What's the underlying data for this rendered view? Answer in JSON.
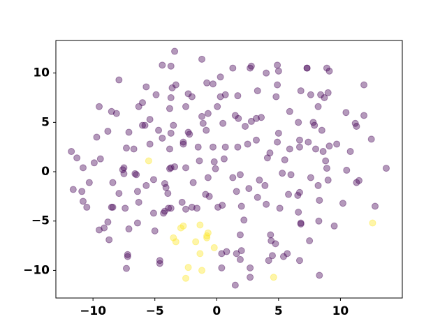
{
  "chart_data": {
    "type": "scatter",
    "xlim": [
      -13.0,
      15.0
    ],
    "ylim": [
      -12.8,
      13.3
    ],
    "xticks": [
      {
        "value": -10,
        "label": "−10"
      },
      {
        "value": -5,
        "label": "−5"
      },
      0,
      5,
      10
    ],
    "yticks": [
      {
        "value": -10,
        "label": "−10"
      },
      {
        "value": -5,
        "label": "−5"
      },
      0,
      5,
      10
    ],
    "series": [
      {
        "color": "#440154",
        "x": [
          -11.75,
          -11.3,
          -10.8,
          -11.6,
          -10.9,
          -10.3,
          -10.8,
          -10.5,
          -9.9,
          -9.4,
          -9.7,
          -9.5,
          -8.8,
          -8.5,
          -8.1,
          -7.9,
          -8.4,
          -8.5,
          -8.4,
          -9.5,
          -9.1,
          -8.8,
          -8.7,
          -7.6,
          -7.5,
          -7.3,
          -7.1,
          -7.5,
          -6.6,
          -6.5,
          -6.7,
          -7.9,
          -7.4,
          -7.1,
          -7.2,
          -7.2,
          -7.3,
          -6.4,
          -6.3,
          -6.4,
          -6.3,
          -6.0,
          -6.0,
          -5.8,
          -5.7,
          -5.4,
          -5.4,
          -5.7,
          -5.1,
          -5.1,
          -5.0,
          -4.9,
          -4.7,
          -4.6,
          -4.6,
          -4.4,
          -4.4,
          -4.3,
          -4.2,
          -4.2,
          -4.1,
          -3.95,
          -3.8,
          -3.7,
          -3.8,
          -3.7,
          -3.7,
          -3.6,
          -3.7,
          -3.8,
          -3.5,
          -3.3,
          -3.4,
          -3.4,
          -3.7,
          -3.9,
          -2.8,
          -2.7,
          -2.7,
          -2.5,
          -2.3,
          -2.0,
          -2.3,
          -2.2,
          -2.5,
          -2.5,
          -1.9,
          -2.0,
          -1.6,
          -1.5,
          -1.4,
          -1.2,
          -1.2,
          -1.1,
          -0.9,
          -0.85,
          -0.8,
          -0.7,
          -0.7,
          -0.6,
          -0.3,
          -0.3,
          -0.2,
          -0.1,
          0.05,
          0.1,
          0.3,
          0.3,
          0.45,
          0.4,
          0.4,
          0.6,
          0.5,
          0.7,
          0.7,
          0.8,
          1.3,
          1.3,
          1.6,
          1.6,
          1.7,
          1.7,
          1.75,
          1.9,
          1.9,
          1.5,
          1.5,
          2.0,
          1.9,
          2.0,
          2.2,
          2.3,
          2.5,
          2.6,
          2.7,
          2.8,
          2.7,
          2.7,
          2.8,
          3.2,
          3.2,
          3.3,
          3.3,
          3.45,
          3.6,
          3.9,
          4.0,
          4.0,
          4.1,
          4.3,
          4.2,
          4.35,
          4.4,
          4.5,
          4.75,
          4.8,
          4.9,
          4.9,
          5.0,
          4.9,
          5.0,
          5.1,
          5.3,
          5.4,
          5.5,
          5.7,
          5.8,
          5.9,
          5.9,
          6.0,
          6.55,
          6.6,
          6.6,
          6.7,
          6.7,
          6.7,
          6.8,
          6.8,
          6.7,
          6.8,
          7.4,
          7.3,
          7.3,
          7.6,
          7.6,
          7.5,
          7.8,
          7.9,
          8.0,
          8.2,
          8.2,
          8.25,
          8.3,
          8.3,
          8.4,
          8.5,
          8.6,
          8.7,
          8.8,
          8.9,
          8.9,
          9.1,
          9.0,
          9.0,
          9.1,
          9.5,
          9.7,
          10.2,
          10.5,
          10.45,
          10.8,
          11.2,
          11.3,
          11.5,
          11.3,
          11.9,
          11.9,
          12.5,
          12.8,
          13.7
        ],
        "values": [
          2.05,
          1.4,
          0.4,
          -1.8,
          -2.0,
          -1.1,
          -3.0,
          -3.6,
          0.9,
          1.3,
          3.5,
          6.6,
          4.1,
          6.1,
          5.9,
          9.3,
          -1.1,
          -3.6,
          -3.6,
          -5.9,
          -5.7,
          -5.1,
          -6.9,
          0.2,
          0.4,
          2.4,
          4.0,
          -0.2,
          -0.2,
          -0.3,
          2.3,
          -2.2,
          -3.7,
          -5.8,
          -8.4,
          -8.6,
          -9.8,
          -5.2,
          -3.1,
          -2.0,
          6.6,
          7.0,
          4.7,
          4.7,
          8.6,
          2.8,
          5.3,
          -1.4,
          -0.8,
          -4.2,
          -6.0,
          7.8,
          4.2,
          -9.0,
          -9.3,
          10.8,
          3.4,
          -4.2,
          -4.0,
          -1.2,
          -1.6,
          -2.2,
          0.3,
          0.4,
          2.3,
          3.9,
          10.7,
          8.5,
          7.5,
          6.4,
          4.7,
          8.8,
          12.2,
          0.5,
          -3.7,
          -3.7,
          -3.1,
          3.0,
          2.8,
          6.6,
          7.9,
          7.6,
          4.0,
          3.8,
          0.4,
          -3.8,
          -1.1,
          -3.6,
          -3.7,
          2.5,
          1.1,
          11.4,
          5.6,
          4.9,
          -2.3,
          4.2,
          9.0,
          -0.6,
          5.9,
          -2.5,
          2.5,
          8.9,
          1.0,
          0.3,
          6.6,
          -3.6,
          7.6,
          9.6,
          -3.4,
          -8.3,
          -9.75,
          1.3,
          4.9,
          2.5,
          7.8,
          -8.1,
          -0.6,
          10.5,
          -2.0,
          -8.3,
          2.5,
          7.7,
          5.4,
          -0.3,
          -6.4,
          5.7,
          -11.5,
          -8.0,
          -8.9,
          -3.5,
          -4.9,
          4.6,
          2.8,
          -1.7,
          10.5,
          10.7,
          -9.75,
          -10.7,
          5.1,
          3.2,
          5.4,
          8.2,
          -2.6,
          -0.85,
          5.5,
          -1.4,
          10.0,
          -3.3,
          1.4,
          1.9,
          -9.0,
          -6.4,
          -7.0,
          -8.5,
          -7.3,
          7.6,
          8.8,
          3.0,
          3.9,
          10.8,
          10.2,
          -3.7,
          -0.15,
          -8.6,
          1.2,
          -8.3,
          -2.3,
          2.3,
          6.1,
          -0.3,
          -2.4,
          5.0,
          -4.1,
          2.5,
          3.2,
          -2.1,
          -5.3,
          -5.2,
          -9.0,
          8.2,
          3.0,
          10.5,
          10.5,
          -0.6,
          7.8,
          -7.0,
          5.0,
          4.7,
          2.3,
          -1.4,
          6.6,
          -5.0,
          -2.9,
          -10.5,
          7.8,
          4.2,
          2.05,
          7.5,
          1.1,
          10.5,
          0.35,
          10.2,
          8.0,
          -0.85,
          2.6,
          -5.5,
          2.8,
          -3.2,
          0.15,
          6.0,
          2.05,
          4.9,
          4.6,
          -0.9,
          -1.1,
          5.7,
          8.8,
          3.3,
          -3.5,
          0.35
        ]
      },
      {
        "color": "#fde725",
        "x": [
          -5.5,
          -2.9,
          -2.7,
          -3.5,
          -3.3,
          -2.3,
          -2.5,
          -1.7,
          -1.35,
          -1.35,
          -1.2,
          -0.7,
          -0.8,
          -0.8,
          -0.2,
          4.6,
          12.6
        ],
        "values": [
          1.1,
          -5.7,
          -5.5,
          -6.7,
          -7.1,
          -9.7,
          -10.8,
          -7.1,
          -5.4,
          -8.3,
          -10.0,
          -6.2,
          -6.7,
          -6.5,
          -7.7,
          -10.7,
          -5.2
        ]
      }
    ]
  }
}
